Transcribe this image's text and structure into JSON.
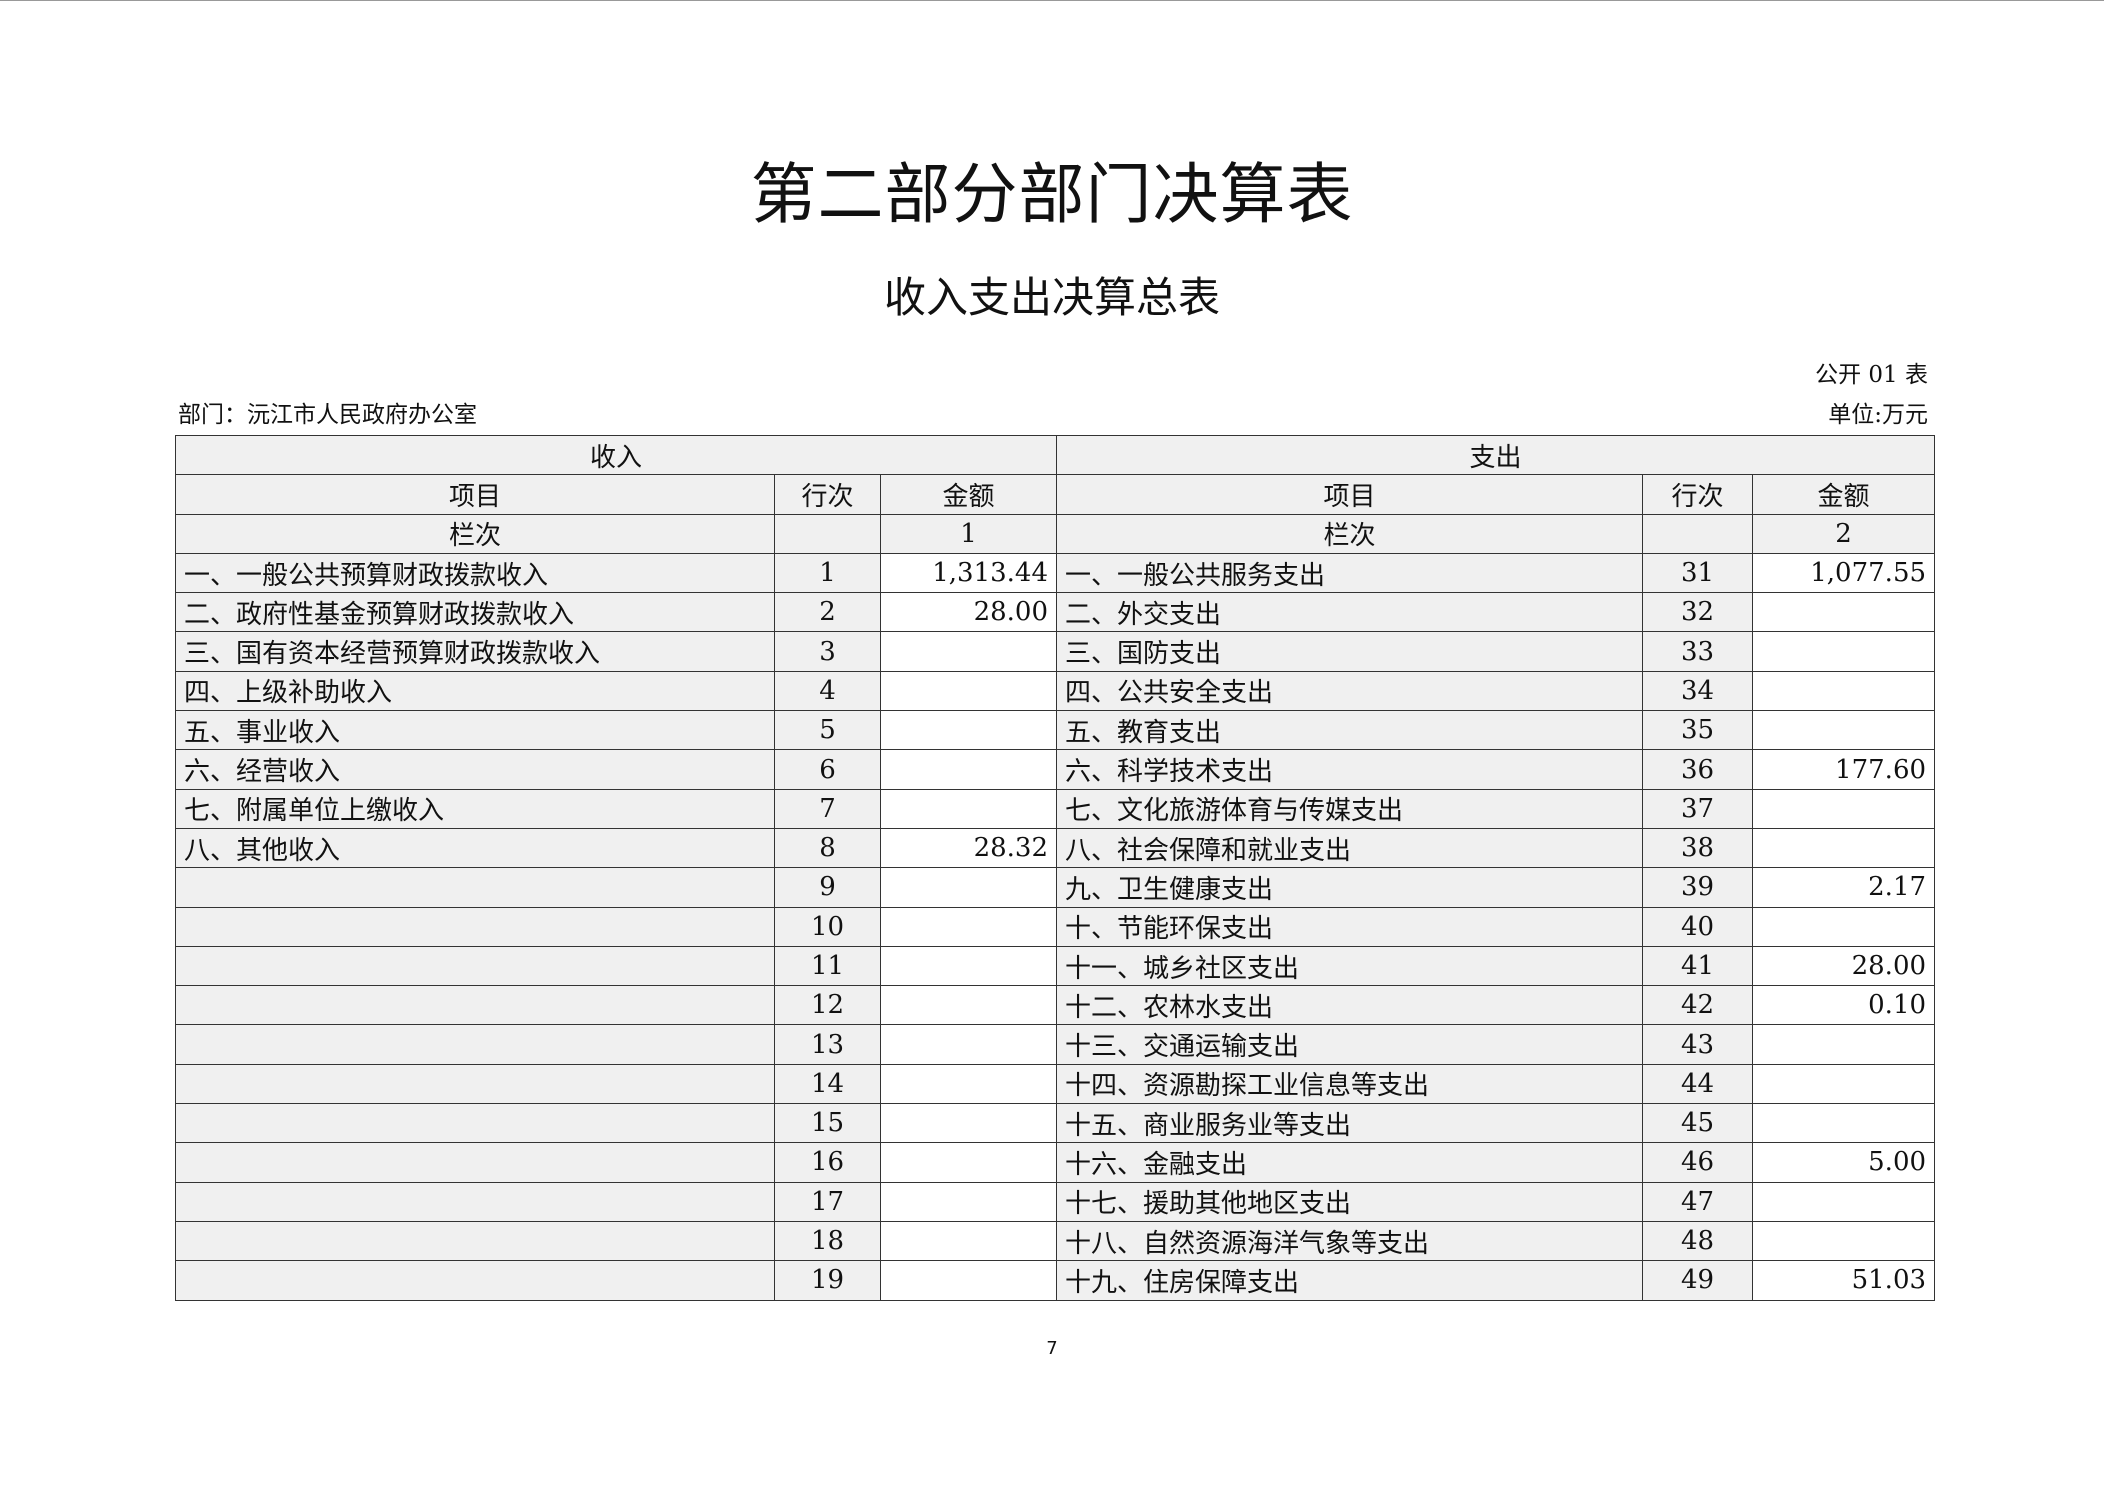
{
  "title": "第二部分部门决算表",
  "subtitle": "收入支出决算总表",
  "form_code": "公开 01 表",
  "department": "部门：沅江市人民政府办公室",
  "unit": "单位:万元",
  "table": {
    "income_header": "收入",
    "expense_header": "支出",
    "col_item": "项目",
    "col_line": "行次",
    "col_amount": "金额",
    "col_index_label": "栏次",
    "income_col_index": "1",
    "expense_col_index": "2",
    "rows": [
      {
        "in_item": "一、一般公共预算财政拨款收入",
        "in_line": "1",
        "in_amount": "1,313.44",
        "ex_item": "一、一般公共服务支出",
        "ex_line": "31",
        "ex_amount": "1,077.55"
      },
      {
        "in_item": "二、政府性基金预算财政拨款收入",
        "in_line": "2",
        "in_amount": "28.00",
        "ex_item": "二、外交支出",
        "ex_line": "32",
        "ex_amount": ""
      },
      {
        "in_item": "三、国有资本经营预算财政拨款收入",
        "in_line": "3",
        "in_amount": "",
        "ex_item": "三、国防支出",
        "ex_line": "33",
        "ex_amount": ""
      },
      {
        "in_item": "四、上级补助收入",
        "in_line": "4",
        "in_amount": "",
        "ex_item": "四、公共安全支出",
        "ex_line": "34",
        "ex_amount": ""
      },
      {
        "in_item": "五、事业收入",
        "in_line": "5",
        "in_amount": "",
        "ex_item": "五、教育支出",
        "ex_line": "35",
        "ex_amount": ""
      },
      {
        "in_item": "六、经营收入",
        "in_line": "6",
        "in_amount": "",
        "ex_item": "六、科学技术支出",
        "ex_line": "36",
        "ex_amount": "177.60"
      },
      {
        "in_item": "七、附属单位上缴收入",
        "in_line": "7",
        "in_amount": "",
        "ex_item": "七、文化旅游体育与传媒支出",
        "ex_line": "37",
        "ex_amount": ""
      },
      {
        "in_item": "八、其他收入",
        "in_line": "8",
        "in_amount": "28.32",
        "ex_item": "八、社会保障和就业支出",
        "ex_line": "38",
        "ex_amount": ""
      },
      {
        "in_item": "",
        "in_line": "9",
        "in_amount": "",
        "ex_item": "九、卫生健康支出",
        "ex_line": "39",
        "ex_amount": "2.17"
      },
      {
        "in_item": "",
        "in_line": "10",
        "in_amount": "",
        "ex_item": "十、节能环保支出",
        "ex_line": "40",
        "ex_amount": ""
      },
      {
        "in_item": "",
        "in_line": "11",
        "in_amount": "",
        "ex_item": "十一、城乡社区支出",
        "ex_line": "41",
        "ex_amount": "28.00"
      },
      {
        "in_item": "",
        "in_line": "12",
        "in_amount": "",
        "ex_item": "十二、农林水支出",
        "ex_line": "42",
        "ex_amount": "0.10"
      },
      {
        "in_item": "",
        "in_line": "13",
        "in_amount": "",
        "ex_item": "十三、交通运输支出",
        "ex_line": "43",
        "ex_amount": ""
      },
      {
        "in_item": "",
        "in_line": "14",
        "in_amount": "",
        "ex_item": "十四、资源勘探工业信息等支出",
        "ex_line": "44",
        "ex_amount": ""
      },
      {
        "in_item": "",
        "in_line": "15",
        "in_amount": "",
        "ex_item": "十五、商业服务业等支出",
        "ex_line": "45",
        "ex_amount": ""
      },
      {
        "in_item": "",
        "in_line": "16",
        "in_amount": "",
        "ex_item": "十六、金融支出",
        "ex_line": "46",
        "ex_amount": "5.00"
      },
      {
        "in_item": "",
        "in_line": "17",
        "in_amount": "",
        "ex_item": "十七、援助其他地区支出",
        "ex_line": "47",
        "ex_amount": ""
      },
      {
        "in_item": "",
        "in_line": "18",
        "in_amount": "",
        "ex_item": "十八、自然资源海洋气象等支出",
        "ex_line": "48",
        "ex_amount": ""
      },
      {
        "in_item": "",
        "in_line": "19",
        "in_amount": "",
        "ex_item": "十九、住房保障支出",
        "ex_line": "49",
        "ex_amount": "51.03"
      }
    ]
  },
  "page_number": "7"
}
